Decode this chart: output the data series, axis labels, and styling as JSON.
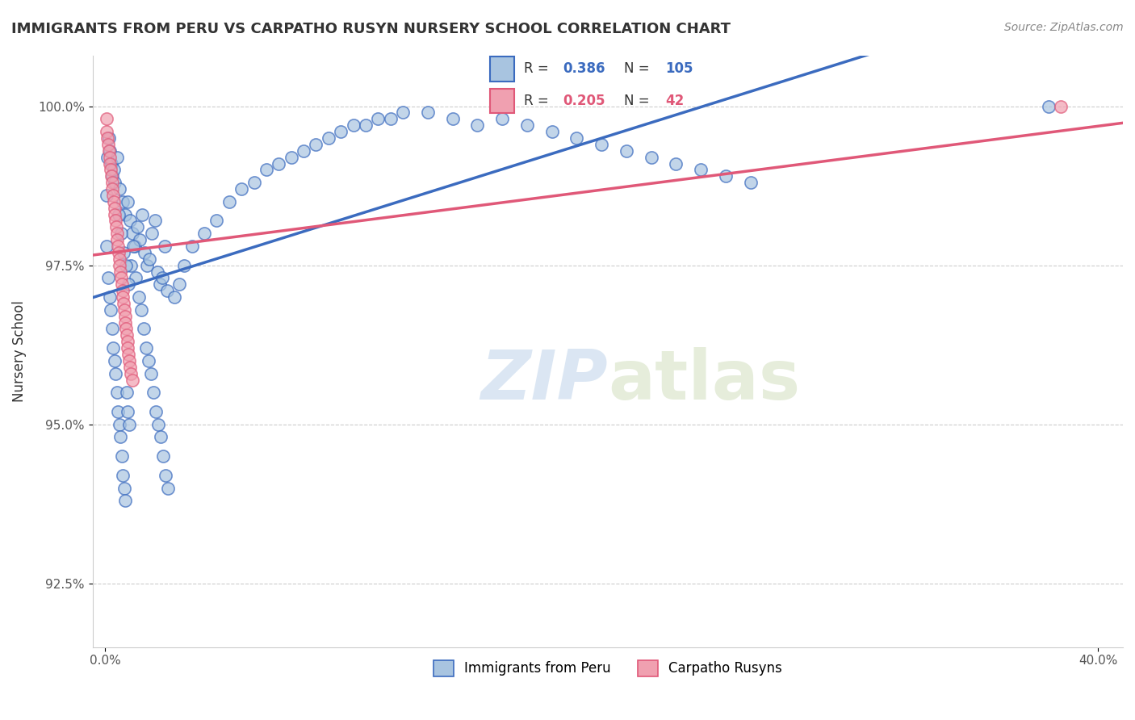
{
  "title": "IMMIGRANTS FROM PERU VS CARPATHO RUSYN NURSERY SCHOOL CORRELATION CHART",
  "source": "Source: ZipAtlas.com",
  "ylabel": "Nursery School",
  "yticks": [
    92.5,
    95.0,
    97.5,
    100.0
  ],
  "ytick_labels": [
    "92.5%",
    "95.0%",
    "97.5%",
    "100.0%"
  ],
  "y_min": 91.5,
  "y_max": 100.8,
  "x_min": -0.5,
  "x_max": 41.0,
  "blue_R": 0.386,
  "blue_N": 105,
  "pink_R": 0.205,
  "pink_N": 42,
  "blue_color": "#a8c4e0",
  "blue_line_color": "#3b6bbf",
  "pink_color": "#f0a0b0",
  "pink_line_color": "#e05878",
  "legend_label_blue": "Immigrants from Peru",
  "legend_label_pink": "Carpatho Rusyns",
  "watermark_zip": "ZIP",
  "watermark_atlas": "atlas",
  "blue_scatter_x": [
    0.1,
    0.15,
    0.2,
    0.25,
    0.3,
    0.35,
    0.4,
    0.5,
    0.6,
    0.7,
    0.8,
    0.9,
    1.0,
    1.1,
    1.2,
    1.3,
    1.4,
    1.5,
    1.6,
    1.7,
    1.8,
    1.9,
    2.0,
    2.1,
    2.2,
    2.3,
    2.4,
    2.5,
    2.8,
    3.0,
    3.2,
    3.5,
    4.0,
    4.5,
    5.0,
    5.5,
    6.0,
    6.5,
    7.0,
    7.5,
    8.0,
    8.5,
    9.0,
    9.5,
    10.0,
    10.5,
    11.0,
    11.5,
    12.0,
    13.0,
    14.0,
    15.0,
    16.0,
    17.0,
    18.0,
    19.0,
    20.0,
    21.0,
    22.0,
    23.0,
    24.0,
    25.0,
    26.0,
    0.05,
    0.08,
    0.12,
    0.18,
    0.22,
    0.28,
    0.32,
    0.38,
    0.42,
    0.48,
    0.52,
    0.58,
    0.62,
    0.68,
    0.72,
    0.78,
    0.82,
    0.88,
    0.92,
    0.98,
    1.05,
    1.15,
    1.25,
    1.35,
    1.45,
    1.55,
    1.65,
    1.75,
    1.85,
    1.95,
    2.05,
    2.15,
    2.25,
    2.35,
    2.45,
    2.55,
    0.55,
    0.65,
    0.75,
    0.85,
    0.95,
    38.0
  ],
  "blue_scatter_y": [
    99.2,
    99.5,
    99.3,
    99.1,
    98.9,
    99.0,
    98.8,
    99.2,
    98.7,
    98.5,
    98.3,
    98.5,
    98.2,
    98.0,
    97.8,
    98.1,
    97.9,
    98.3,
    97.7,
    97.5,
    97.6,
    98.0,
    98.2,
    97.4,
    97.2,
    97.3,
    97.8,
    97.1,
    97.0,
    97.2,
    97.5,
    97.8,
    98.0,
    98.2,
    98.5,
    98.7,
    98.8,
    99.0,
    99.1,
    99.2,
    99.3,
    99.4,
    99.5,
    99.6,
    99.7,
    99.7,
    99.8,
    99.8,
    99.9,
    99.9,
    99.8,
    99.7,
    99.8,
    99.7,
    99.6,
    99.5,
    99.4,
    99.3,
    99.2,
    99.1,
    99.0,
    98.9,
    98.8,
    98.6,
    97.8,
    97.3,
    97.0,
    96.8,
    96.5,
    96.2,
    96.0,
    95.8,
    95.5,
    95.2,
    95.0,
    94.8,
    94.5,
    94.2,
    94.0,
    93.8,
    95.5,
    95.2,
    95.0,
    97.5,
    97.8,
    97.3,
    97.0,
    96.8,
    96.5,
    96.2,
    96.0,
    95.8,
    95.5,
    95.2,
    95.0,
    94.8,
    94.5,
    94.2,
    94.0,
    98.3,
    98.0,
    97.7,
    97.5,
    97.2,
    100.0
  ],
  "pink_scatter_x": [
    0.05,
    0.08,
    0.1,
    0.12,
    0.15,
    0.18,
    0.2,
    0.22,
    0.25,
    0.28,
    0.3,
    0.32,
    0.35,
    0.38,
    0.4,
    0.42,
    0.45,
    0.48,
    0.5,
    0.52,
    0.55,
    0.58,
    0.6,
    0.62,
    0.65,
    0.68,
    0.7,
    0.72,
    0.75,
    0.78,
    0.8,
    0.82,
    0.85,
    0.88,
    0.9,
    0.92,
    0.95,
    0.98,
    1.0,
    1.05,
    1.1,
    38.5
  ],
  "pink_scatter_y": [
    99.8,
    99.6,
    99.5,
    99.4,
    99.3,
    99.2,
    99.1,
    99.0,
    98.9,
    98.8,
    98.7,
    98.6,
    98.5,
    98.4,
    98.3,
    98.2,
    98.1,
    98.0,
    97.9,
    97.8,
    97.7,
    97.6,
    97.5,
    97.4,
    97.3,
    97.2,
    97.1,
    97.0,
    96.9,
    96.8,
    96.7,
    96.6,
    96.5,
    96.4,
    96.3,
    96.2,
    96.1,
    96.0,
    95.9,
    95.8,
    95.7,
    100.0
  ]
}
